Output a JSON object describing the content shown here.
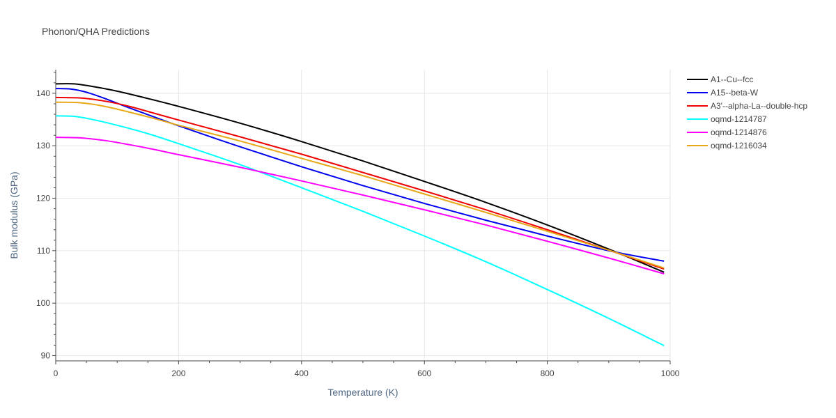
{
  "chart_data": {
    "type": "line",
    "title": "Phonon/QHA Predictions",
    "xlabel": "Temperature (K)",
    "ylabel": "Bulk modulus (GPa)",
    "xlim": [
      0,
      1000
    ],
    "ylim": [
      89,
      144.5
    ],
    "x_ticks": [
      0,
      200,
      400,
      600,
      800,
      1000
    ],
    "y_ticks": [
      90,
      100,
      110,
      120,
      130,
      140
    ],
    "grid": true,
    "legend_position": "right",
    "series": [
      {
        "name": "A1--Cu--fcc",
        "color": "#000000",
        "x": [
          0,
          30,
          60,
          100,
          150,
          200,
          300,
          400,
          500,
          600,
          700,
          800,
          900,
          990
        ],
        "y": [
          141.8,
          141.8,
          141.3,
          140.4,
          139.0,
          137.5,
          134.3,
          130.8,
          127.1,
          123.2,
          119.2,
          114.9,
          110.3,
          105.9
        ]
      },
      {
        "name": "A15--beta-W",
        "color": "#0000ee",
        "x": [
          0,
          25,
          50,
          80,
          120,
          160,
          200,
          300,
          400,
          500,
          600,
          700,
          800,
          900,
          990
        ],
        "y": [
          140.9,
          140.8,
          140.2,
          139.0,
          137.2,
          135.5,
          133.8,
          129.8,
          126.0,
          122.4,
          119.0,
          115.8,
          112.8,
          110.0,
          108.0
        ]
      },
      {
        "name": "A3'--alpha-La--double-hcp",
        "color": "#ee0000",
        "x": [
          0,
          40,
          80,
          120,
          160,
          200,
          300,
          400,
          500,
          600,
          700,
          800,
          900,
          990
        ],
        "y": [
          139.2,
          139.1,
          138.5,
          137.5,
          136.2,
          134.9,
          131.7,
          128.4,
          124.9,
          121.4,
          117.8,
          114.0,
          110.1,
          106.5
        ]
      },
      {
        "name": "oqmd-1214787",
        "color": "#00ffff",
        "x": [
          0,
          30,
          60,
          100,
          150,
          200,
          300,
          400,
          500,
          600,
          700,
          800,
          900,
          990
        ],
        "y": [
          135.7,
          135.6,
          135.0,
          133.9,
          132.3,
          130.4,
          126.4,
          122.0,
          117.5,
          112.8,
          107.9,
          102.6,
          97.1,
          91.9
        ]
      },
      {
        "name": "oqmd-1214876",
        "color": "#ff00ff",
        "x": [
          0,
          40,
          80,
          120,
          160,
          200,
          300,
          400,
          500,
          600,
          700,
          800,
          900,
          990
        ],
        "y": [
          131.6,
          131.5,
          131.0,
          130.2,
          129.3,
          128.3,
          125.9,
          123.3,
          120.6,
          117.8,
          114.9,
          111.8,
          108.6,
          105.6
        ]
      },
      {
        "name": "oqmd-1216034",
        "color": "#e6a817",
        "x": [
          0,
          40,
          80,
          120,
          160,
          200,
          300,
          400,
          500,
          600,
          700,
          800,
          900,
          990
        ],
        "y": [
          138.3,
          138.2,
          137.5,
          136.4,
          135.2,
          133.9,
          130.9,
          127.6,
          124.3,
          120.8,
          117.3,
          113.7,
          110.1,
          106.7
        ]
      }
    ]
  }
}
